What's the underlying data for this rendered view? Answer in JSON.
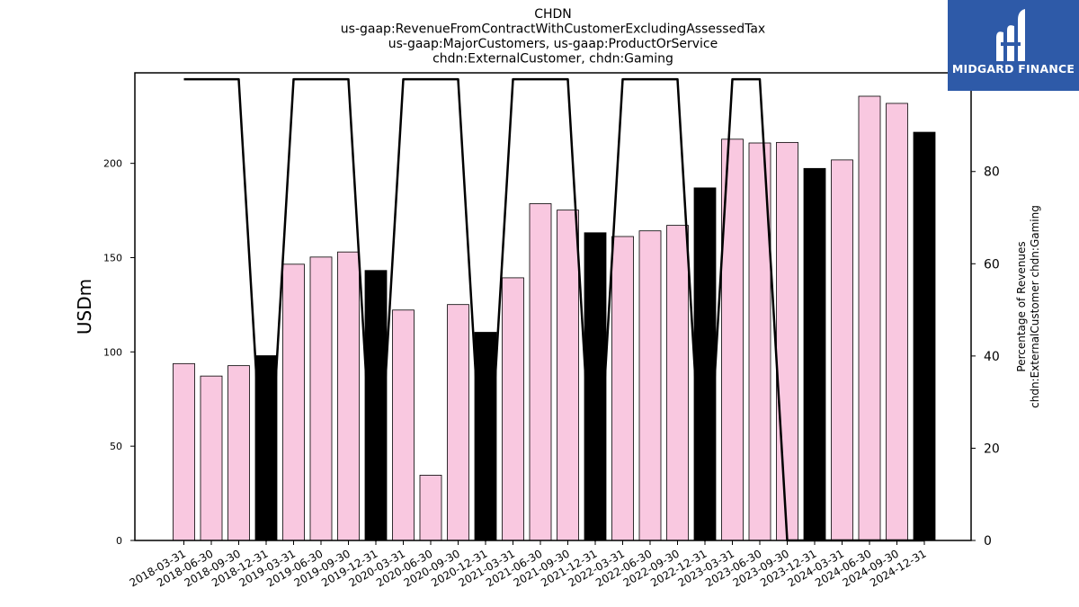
{
  "chart_data": {
    "type": "bar",
    "title_lines": [
      "CHDN",
      "us-gaap:RevenueFromContractWithCustomerExcludingAssessedTax",
      "us-gaap:MajorCustomers, us-gaap:ProductOrService",
      "chdn:ExternalCustomer, chdn:Gaming"
    ],
    "ylabel": "USDm",
    "y2label_lines": [
      "Percentage of Revenues",
      "chdn:ExternalCustomer chdn:Gaming"
    ],
    "ylim": [
      0,
      248
    ],
    "y2lim": [
      0,
      101.4
    ],
    "yticks": [
      0,
      50,
      100,
      150,
      200
    ],
    "y2ticks": [
      0,
      20,
      40,
      60,
      80,
      100
    ],
    "categories": [
      "2018-03-31",
      "2018-06-30",
      "2018-09-30",
      "2018-12-31",
      "2019-03-31",
      "2019-06-30",
      "2019-09-30",
      "2019-12-31",
      "2020-03-31",
      "2020-06-30",
      "2020-09-30",
      "2020-12-31",
      "2021-03-31",
      "2021-06-30",
      "2021-09-30",
      "2021-12-31",
      "2022-03-31",
      "2022-06-30",
      "2022-09-30",
      "2022-12-31",
      "2023-03-31",
      "2023-06-30",
      "2023-09-30",
      "2023-12-31",
      "2024-03-31",
      "2024-06-30",
      "2024-09-30",
      "2024-12-31"
    ],
    "series": [
      {
        "type": "bar",
        "values": [
          93.8,
          87.2,
          92.7,
          98.0,
          146.5,
          150.3,
          153.0,
          143.2,
          122.2,
          34.6,
          125.1,
          110.4,
          139.3,
          178.6,
          175.2,
          163.2,
          161.2,
          164.2,
          167.1,
          187.0,
          212.8,
          210.8,
          211.1,
          197.3,
          201.8,
          235.6,
          231.8,
          216.5
        ],
        "colors": [
          "#f9c8e0",
          "#f9c8e0",
          "#f9c8e0",
          "#000000",
          "#f9c8e0",
          "#f9c8e0",
          "#f9c8e0",
          "#000000",
          "#f9c8e0",
          "#f9c8e0",
          "#f9c8e0",
          "#000000",
          "#f9c8e0",
          "#f9c8e0",
          "#f9c8e0",
          "#000000",
          "#f9c8e0",
          "#f9c8e0",
          "#f9c8e0",
          "#000000",
          "#f9c8e0",
          "#f9c8e0",
          "#f9c8e0",
          "#000000",
          "#f9c8e0",
          "#f9c8e0",
          "#f9c8e0",
          "#000000"
        ]
      },
      {
        "type": "line",
        "axis": "right",
        "color": "#000000",
        "values": [
          100,
          100,
          100,
          0,
          100,
          100,
          100,
          0,
          100,
          100,
          100,
          0,
          100,
          100,
          100,
          0,
          100,
          100,
          100,
          0,
          100,
          100,
          0,
          0,
          0,
          0,
          0,
          0
        ]
      }
    ]
  },
  "logo": {
    "text": "MIDGARD FINANCE",
    "color": "#2e5aa8"
  }
}
